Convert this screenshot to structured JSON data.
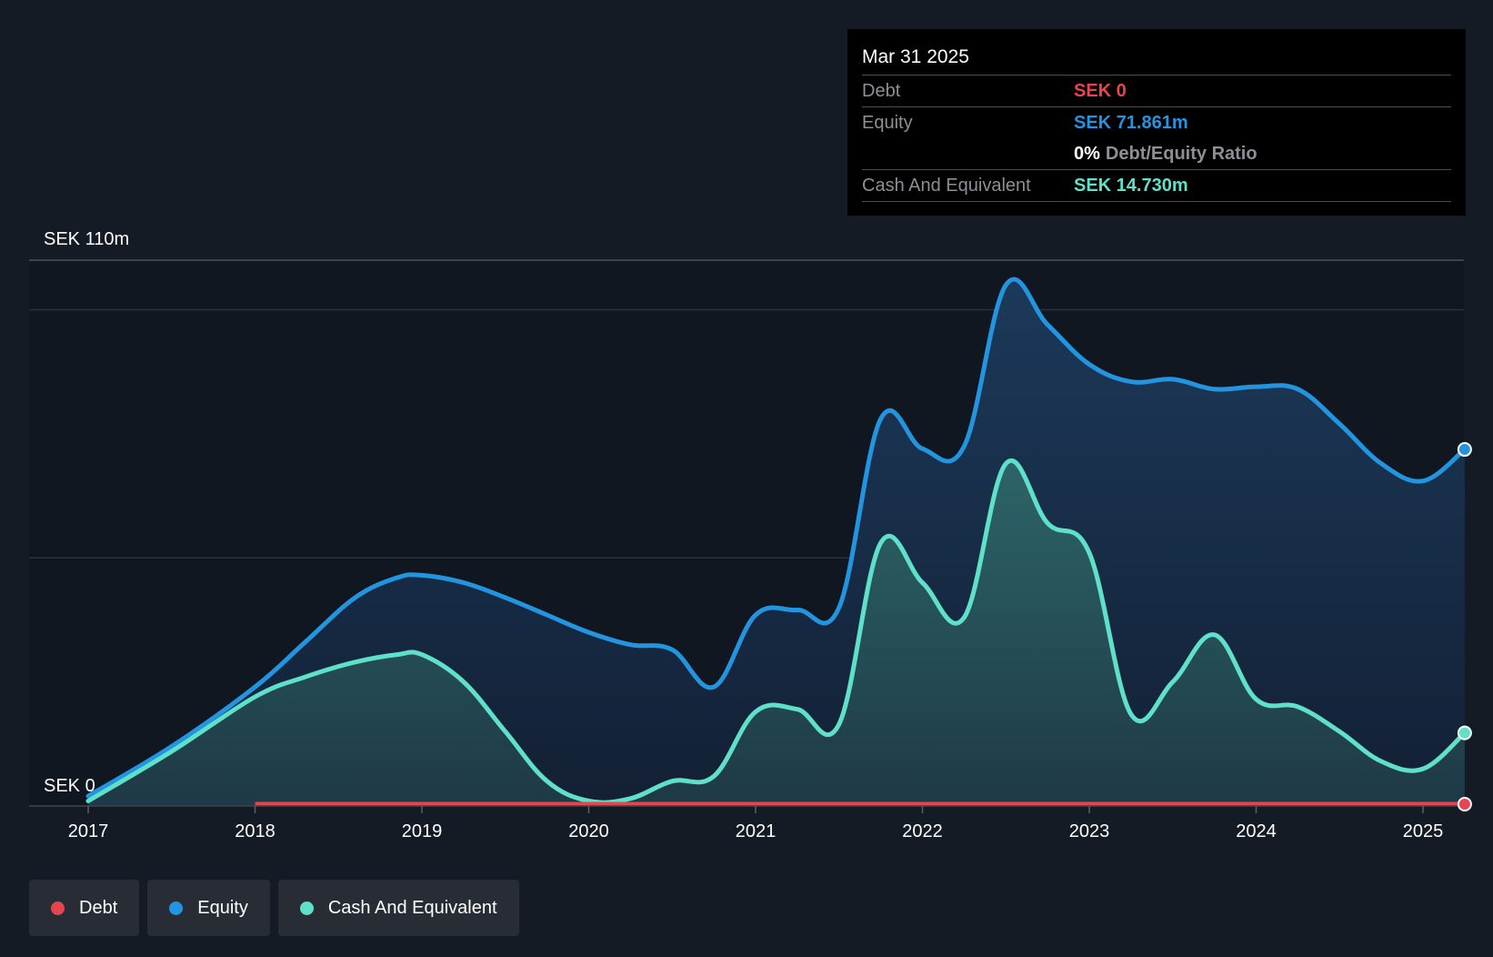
{
  "colors": {
    "debt": "#e64550",
    "equity": "#2394df",
    "cash": "#5fe0c9",
    "background": "#151b24",
    "plot_background": "#111720",
    "grid": "#2b313b"
  },
  "tooltip": {
    "date": "Mar 31 2025",
    "debt_label": "Debt",
    "debt_value": "SEK 0",
    "equity_label": "Equity",
    "equity_value": "SEK 71.861m",
    "ratio_pct": "0%",
    "ratio_label": "Debt/Equity Ratio",
    "cash_label": "Cash And Equivalent",
    "cash_value": "SEK 14.730m"
  },
  "legend": [
    {
      "key": "debt",
      "label": "Debt"
    },
    {
      "key": "equity",
      "label": "Equity"
    },
    {
      "key": "cash",
      "label": "Cash And Equivalent"
    }
  ],
  "chart_data": {
    "type": "area",
    "title": "",
    "xlabel": "",
    "ylabel": "",
    "currency": "SEK",
    "y_top_label": "SEK 110m",
    "y_bottom_label": "SEK 0",
    "ylim": [
      0,
      110
    ],
    "xlim": [
      2017.0,
      2025.25
    ],
    "x_ticks": [
      2017,
      2018,
      2019,
      2020,
      2021,
      2022,
      2023,
      2024,
      2025
    ],
    "x_tick_labels": [
      "2017",
      "2018",
      "2019",
      "2020",
      "2021",
      "2022",
      "2023",
      "2024",
      "2025"
    ],
    "series": [
      {
        "name": "Equity",
        "key": "equity",
        "unit": "SEK m",
        "points": [
          [
            2017.0,
            2.0
          ],
          [
            2017.5,
            12.0
          ],
          [
            2018.0,
            24.0
          ],
          [
            2018.3,
            33.0
          ],
          [
            2018.6,
            42.0
          ],
          [
            2018.85,
            46.0
          ],
          [
            2019.0,
            46.5
          ],
          [
            2019.25,
            45.0
          ],
          [
            2019.5,
            42.0
          ],
          [
            2019.75,
            38.5
          ],
          [
            2020.0,
            35.0
          ],
          [
            2020.25,
            32.5
          ],
          [
            2020.5,
            31.5
          ],
          [
            2020.75,
            24.0
          ],
          [
            2021.0,
            38.5
          ],
          [
            2021.25,
            39.5
          ],
          [
            2021.5,
            40.0
          ],
          [
            2021.75,
            78.0
          ],
          [
            2022.0,
            72.0
          ],
          [
            2022.25,
            72.5
          ],
          [
            2022.5,
            105.0
          ],
          [
            2022.75,
            97.0
          ],
          [
            2023.0,
            89.0
          ],
          [
            2023.25,
            85.5
          ],
          [
            2023.5,
            86.0
          ],
          [
            2023.75,
            84.0
          ],
          [
            2024.0,
            84.5
          ],
          [
            2024.25,
            84.0
          ],
          [
            2024.5,
            77.0
          ],
          [
            2024.75,
            69.0
          ],
          [
            2025.0,
            65.5
          ],
          [
            2025.25,
            71.861
          ]
        ]
      },
      {
        "name": "Cash And Equivalent",
        "key": "cash",
        "unit": "SEK m",
        "points": [
          [
            2017.0,
            1.0
          ],
          [
            2017.5,
            11.0
          ],
          [
            2018.0,
            22.0
          ],
          [
            2018.3,
            26.0
          ],
          [
            2018.6,
            29.0
          ],
          [
            2018.85,
            30.5
          ],
          [
            2019.0,
            30.5
          ],
          [
            2019.25,
            25.0
          ],
          [
            2019.5,
            15.0
          ],
          [
            2019.75,
            5.0
          ],
          [
            2020.0,
            1.0
          ],
          [
            2020.25,
            1.5
          ],
          [
            2020.5,
            5.0
          ],
          [
            2020.75,
            6.0
          ],
          [
            2021.0,
            19.0
          ],
          [
            2021.25,
            19.5
          ],
          [
            2021.5,
            16.5
          ],
          [
            2021.75,
            53.0
          ],
          [
            2022.0,
            45.0
          ],
          [
            2022.25,
            38.0
          ],
          [
            2022.5,
            69.0
          ],
          [
            2022.75,
            57.0
          ],
          [
            2023.0,
            51.0
          ],
          [
            2023.25,
            18.5
          ],
          [
            2023.5,
            25.0
          ],
          [
            2023.75,
            34.5
          ],
          [
            2024.0,
            21.5
          ],
          [
            2024.25,
            20.0
          ],
          [
            2024.5,
            15.0
          ],
          [
            2024.75,
            9.0
          ],
          [
            2025.0,
            7.5
          ],
          [
            2025.25,
            14.73
          ]
        ]
      },
      {
        "name": "Debt",
        "key": "debt",
        "unit": "SEK m",
        "points": [
          [
            2018.0,
            0
          ],
          [
            2019.0,
            0
          ],
          [
            2020.0,
            0
          ],
          [
            2021.0,
            0
          ],
          [
            2022.0,
            0
          ],
          [
            2023.0,
            0
          ],
          [
            2024.0,
            0
          ],
          [
            2025.0,
            0
          ],
          [
            2025.25,
            0
          ]
        ]
      }
    ],
    "gridlines_y": [
      0,
      50,
      100,
      110
    ],
    "legend_position": "bottom-left"
  }
}
